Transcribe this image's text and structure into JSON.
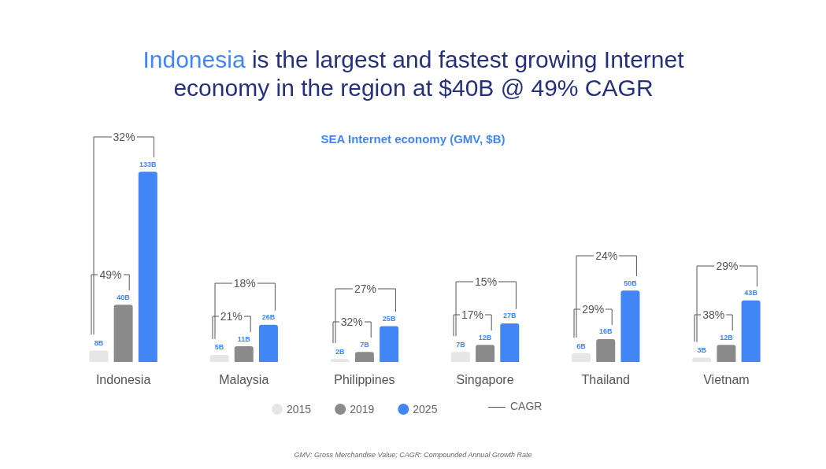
{
  "chart_data": {
    "type": "bar",
    "title": "Indonesia is the largest and fastest growing Internet economy in the region at $40B @ 49% CAGR",
    "subtitle": "SEA Internet economy (GMV, $B)",
    "categories": [
      "Indonesia",
      "Malaysia",
      "Philippines",
      "Singapore",
      "Thailand",
      "Vietnam"
    ],
    "series": [
      {
        "name": "2015",
        "color": "#e6e6e6",
        "values": [
          8,
          5,
          2,
          7,
          6,
          3
        ],
        "value_labels": [
          "8B",
          "5B",
          "2B",
          "7B",
          "6B",
          "3B"
        ]
      },
      {
        "name": "2019",
        "color": "#8a8a8a",
        "values": [
          40,
          11,
          7,
          12,
          16,
          12
        ],
        "value_labels": [
          "40B",
          "11B",
          "7B",
          "12B",
          "16B",
          "12B"
        ]
      },
      {
        "name": "2025",
        "color": "#4285f4",
        "values": [
          133,
          26,
          25,
          27,
          50,
          43
        ],
        "value_labels": [
          "133B",
          "26B",
          "25B",
          "27B",
          "50B",
          "43B"
        ]
      }
    ],
    "legend": "bottom",
    "annotations": [
      "CAGR",
      "GMV: Gross Merchandise Value; CAGR: Compounded Annual Growth Rate",
      "32%",
      "49%",
      "18%",
      "21%",
      "27%",
      "32%",
      "15%",
      "17%",
      "24%",
      "29%",
      "29%",
      "38%"
    ]
  }
}
